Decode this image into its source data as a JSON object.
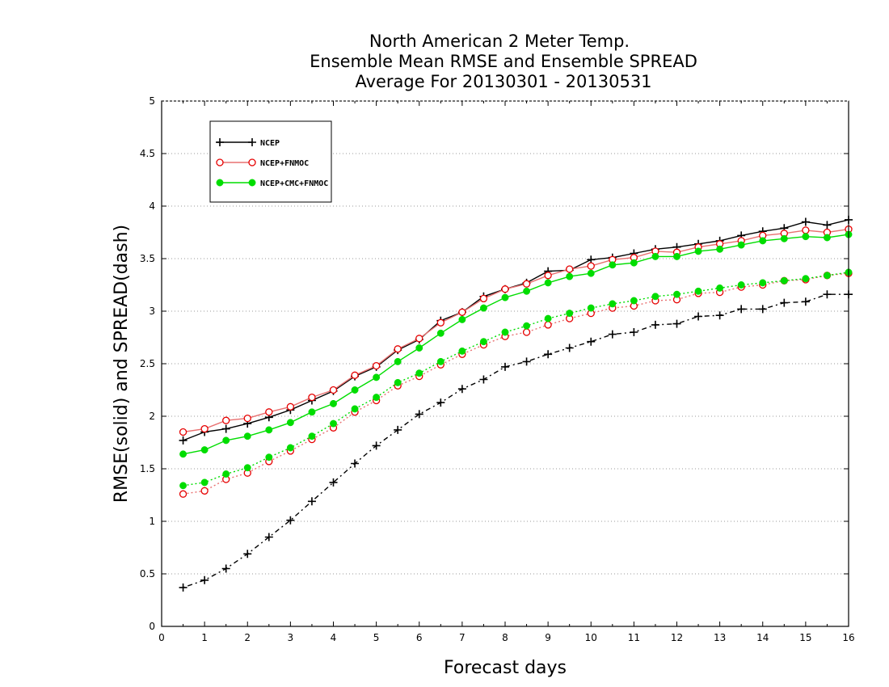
{
  "chart_data": {
    "type": "line",
    "title": [
      "North American 2 Meter Temp.",
      "Ensemble Mean RMSE and Ensemble SPREAD",
      "Average For 20130301 - 20130531"
    ],
    "xlabel": "Forecast days",
    "ylabel": "RMSE(solid) and SPREAD(dash)",
    "xlim": [
      0,
      16
    ],
    "ylim": [
      0,
      5
    ],
    "xticks": [
      "0",
      "1",
      "2",
      "3",
      "4",
      "5",
      "6",
      "7",
      "8",
      "9",
      "10",
      "11",
      "12",
      "13",
      "14",
      "15",
      "16"
    ],
    "yticks": [
      "0",
      "0.5",
      "1",
      "1.5",
      "2",
      "2.5",
      "3",
      "3.5",
      "4",
      "4.5",
      "5"
    ],
    "grid": true,
    "legend_position": "top-left",
    "x": [
      0.5,
      1,
      1.5,
      2,
      2.5,
      3,
      3.5,
      4,
      4.5,
      5,
      5.5,
      6,
      6.5,
      7,
      7.5,
      8,
      8.5,
      9,
      9.5,
      10,
      10.5,
      11,
      11.5,
      12,
      12.5,
      13,
      13.5,
      14,
      14.5,
      15,
      15.5,
      16
    ],
    "series": [
      {
        "name": "NCEP",
        "color": "#000000",
        "marker": "plus",
        "rmse": [
          1.77,
          1.85,
          1.88,
          1.93,
          1.99,
          2.06,
          2.15,
          2.24,
          2.38,
          2.47,
          2.63,
          2.73,
          2.91,
          2.99,
          3.14,
          3.21,
          3.27,
          3.38,
          3.39,
          3.49,
          3.51,
          3.55,
          3.59,
          3.61,
          3.64,
          3.67,
          3.72,
          3.76,
          3.79,
          3.85,
          3.82,
          3.87
        ],
        "spread": [
          0.37,
          0.44,
          0.55,
          0.69,
          0.85,
          1.01,
          1.19,
          1.37,
          1.55,
          1.72,
          1.87,
          2.02,
          2.13,
          2.26,
          2.35,
          2.47,
          2.52,
          2.59,
          2.65,
          2.71,
          2.78,
          2.8,
          2.87,
          2.88,
          2.95,
          2.96,
          3.02,
          3.02,
          3.08,
          3.09,
          3.16,
          3.16
        ]
      },
      {
        "name": "NCEP+FNMOC",
        "color": "#e60000",
        "line_color": "#e87070",
        "marker": "open-circle",
        "rmse": [
          1.85,
          1.88,
          1.96,
          1.98,
          2.04,
          2.09,
          2.18,
          2.25,
          2.39,
          2.48,
          2.64,
          2.74,
          2.89,
          2.99,
          3.12,
          3.21,
          3.26,
          3.34,
          3.4,
          3.43,
          3.49,
          3.51,
          3.57,
          3.56,
          3.61,
          3.64,
          3.67,
          3.72,
          3.74,
          3.77,
          3.75,
          3.78
        ],
        "spread": [
          1.26,
          1.29,
          1.4,
          1.46,
          1.57,
          1.67,
          1.78,
          1.89,
          2.04,
          2.15,
          2.29,
          2.38,
          2.49,
          2.59,
          2.68,
          2.76,
          2.8,
          2.87,
          2.93,
          2.98,
          3.03,
          3.05,
          3.1,
          3.11,
          3.17,
          3.18,
          3.23,
          3.25,
          3.29,
          3.3,
          3.34,
          3.36
        ]
      },
      {
        "name": "NCEP+CMC+FNMOC",
        "color": "#00dd00",
        "marker": "filled-circle",
        "rmse": [
          1.64,
          1.68,
          1.77,
          1.81,
          1.87,
          1.94,
          2.04,
          2.12,
          2.25,
          2.37,
          2.52,
          2.65,
          2.79,
          2.92,
          3.03,
          3.13,
          3.19,
          3.27,
          3.33,
          3.36,
          3.44,
          3.46,
          3.52,
          3.52,
          3.57,
          3.59,
          3.63,
          3.67,
          3.69,
          3.71,
          3.7,
          3.73
        ],
        "spread": [
          1.34,
          1.37,
          1.45,
          1.51,
          1.61,
          1.7,
          1.81,
          1.93,
          2.07,
          2.18,
          2.32,
          2.41,
          2.52,
          2.62,
          2.71,
          2.8,
          2.86,
          2.93,
          2.98,
          3.03,
          3.07,
          3.1,
          3.14,
          3.16,
          3.19,
          3.22,
          3.25,
          3.27,
          3.29,
          3.31,
          3.34,
          3.37
        ]
      }
    ]
  }
}
